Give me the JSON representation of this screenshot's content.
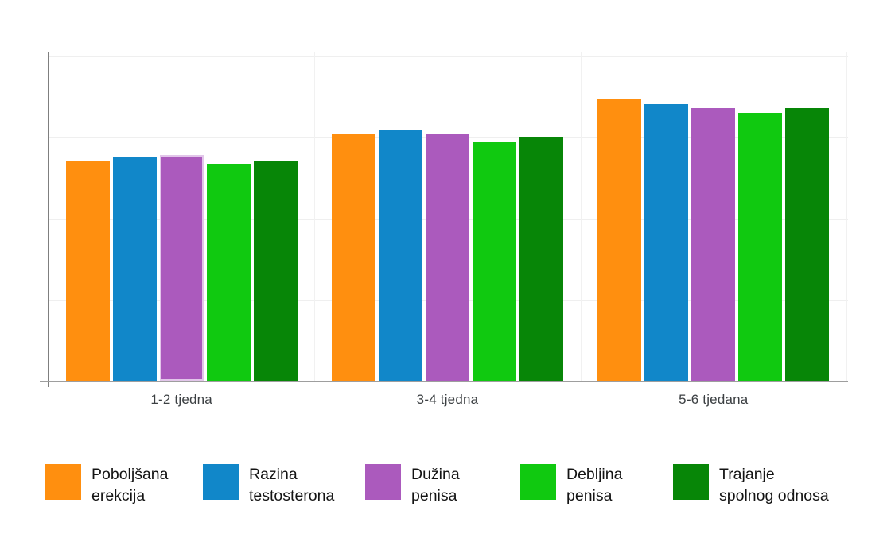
{
  "page": {
    "background": "#ffffff"
  },
  "axis": {
    "y_axis_color": "#7f7f7f",
    "baseline_color": "#9e9e9e",
    "gridline_color": "#efefef",
    "tick_label_color": "#3c4043"
  },
  "chart_data": {
    "type": "bar",
    "title": "",
    "xlabel": "",
    "ylabel": "",
    "categories": [
      "1-2 tjedna",
      "3-4 tjedna",
      "5-6 tjedana"
    ],
    "series": [
      {
        "name": "Poboljšana erekcija",
        "label_lines": [
          "Poboljšana",
          "erekcija"
        ],
        "color": "#FF8F0F",
        "values": [
          67.7,
          75.8,
          86.9
        ]
      },
      {
        "name": "Razina testosterona",
        "label_lines": [
          "Razina",
          "testosterona"
        ],
        "color": "#1187C9",
        "values": [
          68.7,
          77.0,
          85.1
        ]
      },
      {
        "name": "Dužina penisa",
        "label_lines": [
          "Dužina",
          "penisa"
        ],
        "color": "#AB5ABD",
        "values": [
          69.4,
          75.7,
          83.8
        ]
      },
      {
        "name": "Debljina penisa",
        "label_lines": [
          "Debljina",
          "penisa"
        ],
        "color": "#10C910",
        "values": [
          66.5,
          73.3,
          82.5
        ]
      },
      {
        "name": "Trajanje spolnog odnosa",
        "label_lines": [
          "Trajanje",
          "spolnog odnosa"
        ],
        "color": "#078607",
        "values": [
          67.5,
          74.8,
          83.8
        ]
      }
    ],
    "ylim": [
      0,
      100
    ],
    "y_gridline_step": 25,
    "grid": true,
    "y_axis_tick_labels_visible": false,
    "legend_position": "bottom",
    "highlighted_bar": {
      "series_index": 2,
      "category_index": 0,
      "outline_color": "#E2C6EA"
    }
  }
}
